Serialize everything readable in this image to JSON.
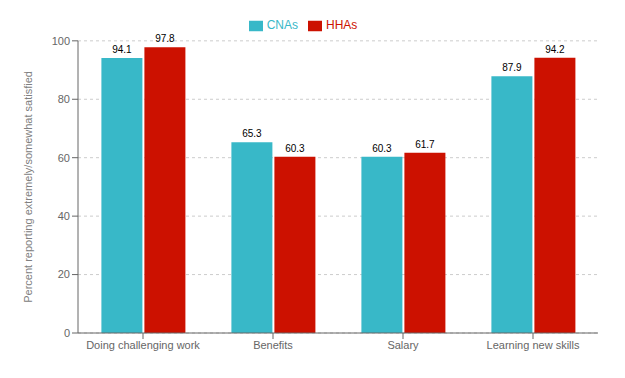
{
  "chart_data": {
    "type": "bar",
    "categories": [
      "Doing challenging work",
      "Benefits",
      "Salary",
      "Learning new skills"
    ],
    "series": [
      {
        "name": "CNAs",
        "color": "#38B8C8",
        "values": [
          94.1,
          65.3,
          60.3,
          87.9
        ]
      },
      {
        "name": "HHAs",
        "color": "#CC1100",
        "values": [
          97.8,
          60.3,
          61.7,
          94.2
        ]
      }
    ],
    "ylabel": "Percent reporting extremely/somewhat satisfied",
    "ylim": [
      0,
      100
    ],
    "yticks": [
      0,
      20,
      40,
      60,
      80,
      100
    ],
    "grid": true,
    "legend": "top",
    "data_labels": true
  }
}
